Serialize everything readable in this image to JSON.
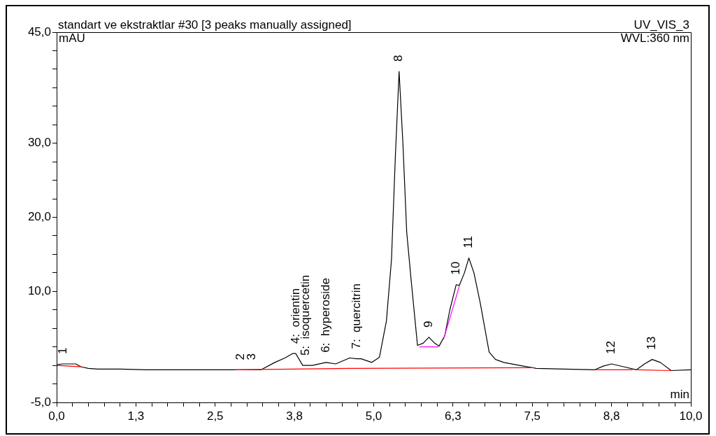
{
  "chart_data": {
    "type": "line",
    "title": "standart ve ekstraktlar #30 [3 peaks manually assigned]",
    "xlabel": "min",
    "ylabel": "mAU",
    "annotations": [
      "UV_VIS_3",
      "WVL:360 nm",
      {
        "text": "1",
        "x": 0.1,
        "y": 0.2
      },
      {
        "text": "2",
        "x": 2.9,
        "y": -0.6
      },
      {
        "text": "3",
        "x": 3.08,
        "y": -0.6
      },
      {
        "text": "4:  orientin",
        "x": 3.77,
        "y": 1.6
      },
      {
        "text": "5:  isoquercetin",
        "x": 3.93,
        "y": 0.0
      },
      {
        "text": "6:  hyperoside",
        "x": 4.25,
        "y": 0.4
      },
      {
        "text": "7:  quercitrin",
        "x": 4.73,
        "y": 0.9
      },
      {
        "text": "8",
        "x": 5.4,
        "y": 39.7
      },
      {
        "text": "9",
        "x": 5.87,
        "y": 3.8
      },
      {
        "text": "10",
        "x": 6.3,
        "y": 10.9
      },
      {
        "text": "11",
        "x": 6.5,
        "y": 14.5
      },
      {
        "text": "12",
        "x": 8.75,
        "y": 0.2
      },
      {
        "text": "13",
        "x": 9.39,
        "y": 0.8
      }
    ],
    "series": [
      {
        "color": "#000000",
        "x": [
          0,
          0.1,
          0.3,
          0.39,
          0.5,
          0.65,
          1.0,
          1.4,
          1.75,
          2.2,
          2.63,
          2.9,
          3.08,
          3.22,
          3.44,
          3.6,
          3.72,
          3.77,
          3.88,
          3.93,
          4.03,
          4.25,
          4.4,
          4.62,
          4.73,
          4.8,
          4.97,
          5.09,
          5.2,
          5.28,
          5.34,
          5.4,
          5.46,
          5.52,
          5.59,
          5.69,
          5.78,
          5.87,
          5.96,
          6.03,
          6.12,
          6.2,
          6.3,
          6.35,
          6.43,
          6.5,
          6.58,
          6.68,
          6.82,
          6.92,
          7.05,
          7.3,
          7.56,
          8.0,
          8.48,
          8.62,
          8.75,
          8.95,
          9.14,
          9.27,
          9.39,
          9.52,
          9.69,
          10
        ],
        "values": [
          0.1,
          0.2,
          0.2,
          -0.2,
          -0.4,
          -0.5,
          -0.5,
          -0.6,
          -0.6,
          -0.6,
          -0.6,
          -0.6,
          -0.6,
          -0.6,
          0.4,
          1.0,
          1.6,
          1.6,
          0.0,
          0.0,
          0.0,
          0.4,
          0.2,
          1.0,
          0.9,
          0.9,
          0.4,
          1.1,
          6.0,
          14.3,
          28,
          39.7,
          30,
          18,
          11.5,
          2.7,
          3.0,
          3.8,
          3.0,
          2.6,
          4.0,
          7.5,
          10.9,
          10.8,
          12.5,
          14.5,
          12.5,
          8.4,
          1.8,
          0.8,
          0.4,
          0.0,
          -0.4,
          -0.5,
          -0.6,
          -0.1,
          0.2,
          -0.2,
          -0.6,
          0.2,
          0.8,
          0.4,
          -0.7,
          -0.6
        ]
      },
      {
        "color": "#ff0000",
        "x": [
          0,
          0.39,
          0.4,
          2.82,
          4.62,
          7.54,
          7.6,
          8.48,
          9.08,
          9.1,
          9.14,
          9.69
        ],
        "values": [
          0.0,
          -0.2,
          null,
          -0.6,
          -0.4,
          -0.3,
          null,
          -0.6,
          -0.6,
          null,
          -0.6,
          -0.7
        ]
      },
      {
        "color": "#ff00ff",
        "x": [
          5.72,
          6.02,
          6.06,
          6.1,
          6.35
        ],
        "values": [
          2.5,
          2.5,
          null,
          3.5,
          10.7
        ]
      }
    ],
    "xlim": [
      0,
      10
    ],
    "xticks": [
      {
        "value": 0,
        "label": "0,0"
      },
      {
        "value": 0.25,
        "label": null
      },
      {
        "value": 0.5,
        "label": null
      },
      {
        "value": 0.75,
        "label": null
      },
      {
        "value": 1,
        "label": null
      },
      {
        "value": 1.25,
        "label": "1,3"
      },
      {
        "value": 1.5,
        "label": null
      },
      {
        "value": 1.75,
        "label": null
      },
      {
        "value": 2,
        "label": null
      },
      {
        "value": 2.25,
        "label": null
      },
      {
        "value": 2.5,
        "label": "2,5"
      },
      {
        "value": 2.75,
        "label": null
      },
      {
        "value": 3,
        "label": null
      },
      {
        "value": 3.25,
        "label": null
      },
      {
        "value": 3.5,
        "label": null
      },
      {
        "value": 3.75,
        "label": "3,8"
      },
      {
        "value": 4,
        "label": null
      },
      {
        "value": 4.25,
        "label": null
      },
      {
        "value": 4.5,
        "label": null
      },
      {
        "value": 4.75,
        "label": null
      },
      {
        "value": 5,
        "label": "5,0"
      },
      {
        "value": 5.25,
        "label": null
      },
      {
        "value": 5.5,
        "label": null
      },
      {
        "value": 5.75,
        "label": null
      },
      {
        "value": 6,
        "label": null
      },
      {
        "value": 6.25,
        "label": "6,3"
      },
      {
        "value": 6.5,
        "label": null
      },
      {
        "value": 6.75,
        "label": null
      },
      {
        "value": 7,
        "label": null
      },
      {
        "value": 7.25,
        "label": null
      },
      {
        "value": 7.5,
        "label": "7,5"
      },
      {
        "value": 7.75,
        "label": null
      },
      {
        "value": 8,
        "label": null
      },
      {
        "value": 8.25,
        "label": null
      },
      {
        "value": 8.5,
        "label": null
      },
      {
        "value": 8.75,
        "label": "8,8"
      },
      {
        "value": 9,
        "label": null
      },
      {
        "value": 9.25,
        "label": null
      },
      {
        "value": 9.5,
        "label": null
      },
      {
        "value": 9.75,
        "label": null
      },
      {
        "value": 10,
        "label": "10,0"
      }
    ],
    "ylim": [
      -5,
      45
    ],
    "yticks": [
      {
        "value": -5,
        "label": "-5,0"
      },
      {
        "value": -2.5,
        "label": null
      },
      {
        "value": 0,
        "label": null
      },
      {
        "value": 2.5,
        "label": null
      },
      {
        "value": 5,
        "label": null
      },
      {
        "value": 7.5,
        "label": null
      },
      {
        "value": 10,
        "label": "10,0"
      },
      {
        "value": 12.5,
        "label": null
      },
      {
        "value": 15,
        "label": null
      },
      {
        "value": 17.5,
        "label": null
      },
      {
        "value": 20,
        "label": "20,0"
      },
      {
        "value": 22.5,
        "label": null
      },
      {
        "value": 25,
        "label": null
      },
      {
        "value": 27.5,
        "label": null
      },
      {
        "value": 30,
        "label": "30,0"
      },
      {
        "value": 32.5,
        "label": null
      },
      {
        "value": 35,
        "label": null
      },
      {
        "value": 37.5,
        "label": null
      },
      {
        "value": 40,
        "label": null
      },
      {
        "value": 42.5,
        "label": null
      },
      {
        "value": 45,
        "label": "45,0"
      }
    ],
    "grid": false,
    "legend": false,
    "marker": "none",
    "line_style": "solid"
  }
}
